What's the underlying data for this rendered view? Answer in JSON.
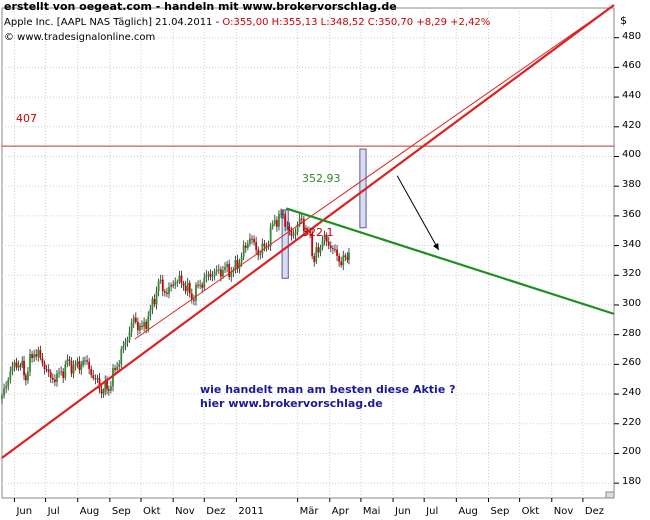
{
  "header": {
    "title": "erstellt von oegeat.com - handeln mit www.brokervorschlag.de",
    "instrument": "Apple Inc. [AAPL NAS  Täglich] 21.04.2011 - ",
    "ohlc": "O:355,00 H:355,13 L:348,52 C:350,70",
    "change": "+8,29 +2,42%",
    "copyright": "© www.tradesignalonline.com",
    "currency": "$"
  },
  "annotations": {
    "level_label": "407",
    "price_high": "352,93",
    "price_low": "322,1",
    "question": "wie handelt man am besten diese Aktie ?",
    "link": "hier www.brokervorschlag.de"
  },
  "colors": {
    "up": "#2e8b2e",
    "down": "#cc0000",
    "trend_red": "#e02020",
    "trend_green": "#1f8f1f",
    "box_fill": "#d8dcf0",
    "box_stroke": "#5a5aa0",
    "grid": "#cfcfcf"
  },
  "chart_data": {
    "type": "candlestick",
    "y_axis": {
      "ticks": [
        180,
        200,
        220,
        240,
        260,
        280,
        300,
        320,
        340,
        360,
        380,
        400,
        420,
        440,
        460,
        480
      ],
      "tick_labels": [
        "180",
        "200",
        "220",
        "240",
        "260",
        "280",
        "300",
        "320",
        "340",
        "360",
        "380",
        "400",
        "420",
        "440",
        "460",
        "480"
      ],
      "range": [
        170,
        500
      ]
    },
    "x_axis": {
      "tick_labels": [
        "Jun",
        "Jul",
        "Aug",
        "Sep",
        "Okt",
        "Nov",
        "Dez",
        "2011",
        "Mär",
        "Apr",
        "Mai",
        "Jun",
        "Jul",
        "Aug",
        "Sep",
        "Okt",
        "Nov",
        "Dez"
      ],
      "month_starts": [
        "2010-06-01",
        "2010-07-01",
        "2010-08-01",
        "2010-09-01",
        "2010-10-01",
        "2010-11-01",
        "2010-12-01",
        "2011-01-01",
        "2011-03-01",
        "2011-04-01",
        "2011-05-01",
        "2011-06-01",
        "2011-07-01",
        "2011-08-01",
        "2011-09-01",
        "2011-10-01",
        "2011-11-01",
        "2011-12-01"
      ],
      "range": [
        "2010-05-20",
        "2011-12-31"
      ]
    },
    "closes": [
      {
        "d": "2010-05-20",
        "c": 237
      },
      {
        "d": "2010-05-28",
        "c": 256
      },
      {
        "d": "2010-06-05",
        "c": 262
      },
      {
        "d": "2010-06-12",
        "c": 253
      },
      {
        "d": "2010-06-20",
        "c": 270
      },
      {
        "d": "2010-06-28",
        "c": 262
      },
      {
        "d": "2010-07-06",
        "c": 250
      },
      {
        "d": "2010-07-14",
        "c": 252
      },
      {
        "d": "2010-07-22",
        "c": 260
      },
      {
        "d": "2010-07-30",
        "c": 258
      },
      {
        "d": "2010-08-08",
        "c": 262
      },
      {
        "d": "2010-08-16",
        "c": 252
      },
      {
        "d": "2010-08-24",
        "c": 243
      },
      {
        "d": "2010-08-31",
        "c": 245
      },
      {
        "d": "2010-09-08",
        "c": 260
      },
      {
        "d": "2010-09-16",
        "c": 275
      },
      {
        "d": "2010-09-24",
        "c": 290
      },
      {
        "d": "2010-10-02",
        "c": 283
      },
      {
        "d": "2010-10-10",
        "c": 295
      },
      {
        "d": "2010-10-18",
        "c": 315
      },
      {
        "d": "2010-10-26",
        "c": 308
      },
      {
        "d": "2010-11-03",
        "c": 317
      },
      {
        "d": "2010-11-11",
        "c": 315
      },
      {
        "d": "2010-11-19",
        "c": 305
      },
      {
        "d": "2010-11-27",
        "c": 314
      },
      {
        "d": "2010-12-05",
        "c": 320
      },
      {
        "d": "2010-12-13",
        "c": 322
      },
      {
        "d": "2010-12-21",
        "c": 324
      },
      {
        "d": "2010-12-29",
        "c": 323
      },
      {
        "d": "2011-01-06",
        "c": 333
      },
      {
        "d": "2011-01-14",
        "c": 346
      },
      {
        "d": "2011-01-22",
        "c": 335
      },
      {
        "d": "2011-01-30",
        "c": 340
      },
      {
        "d": "2011-02-07",
        "c": 357
      },
      {
        "d": "2011-02-15",
        "c": 360
      },
      {
        "d": "2011-02-23",
        "c": 345
      },
      {
        "d": "2011-03-03",
        "c": 357
      },
      {
        "d": "2011-03-11",
        "c": 350
      },
      {
        "d": "2011-03-17",
        "c": 330
      },
      {
        "d": "2011-03-25",
        "c": 345
      },
      {
        "d": "2011-04-02",
        "c": 340
      },
      {
        "d": "2011-04-10",
        "c": 330
      },
      {
        "d": "2011-04-18",
        "c": 330
      },
      {
        "d": "2011-04-21",
        "c": 350.7
      }
    ],
    "levels": [
      {
        "y": 407,
        "label": "407"
      }
    ],
    "trendlines": [
      {
        "name": "",
        "from": {
          "d": "2010-05-20",
          "y": 197
        },
        "to": {
          "d": "2011-12-31",
          "y": 502
        }
      },
      {
        "name": "",
        "from": {
          "d": "2010-09-25",
          "y": 277
        },
        "to": {
          "d": "2011-12-31",
          "y": 502
        }
      },
      {
        "name": "",
        "from": {
          "d": "2011-02-18",
          "y": 365
        },
        "to": {
          "d": "2011-12-31",
          "y": 294
        }
      }
    ],
    "boxes": [
      {
        "from": "2011-02-14",
        "to": "2011-02-20",
        "low": 318,
        "high": 364
      },
      {
        "from": "2011-04-30",
        "to": "2011-05-06",
        "low": 352,
        "high": 405
      }
    ]
  }
}
